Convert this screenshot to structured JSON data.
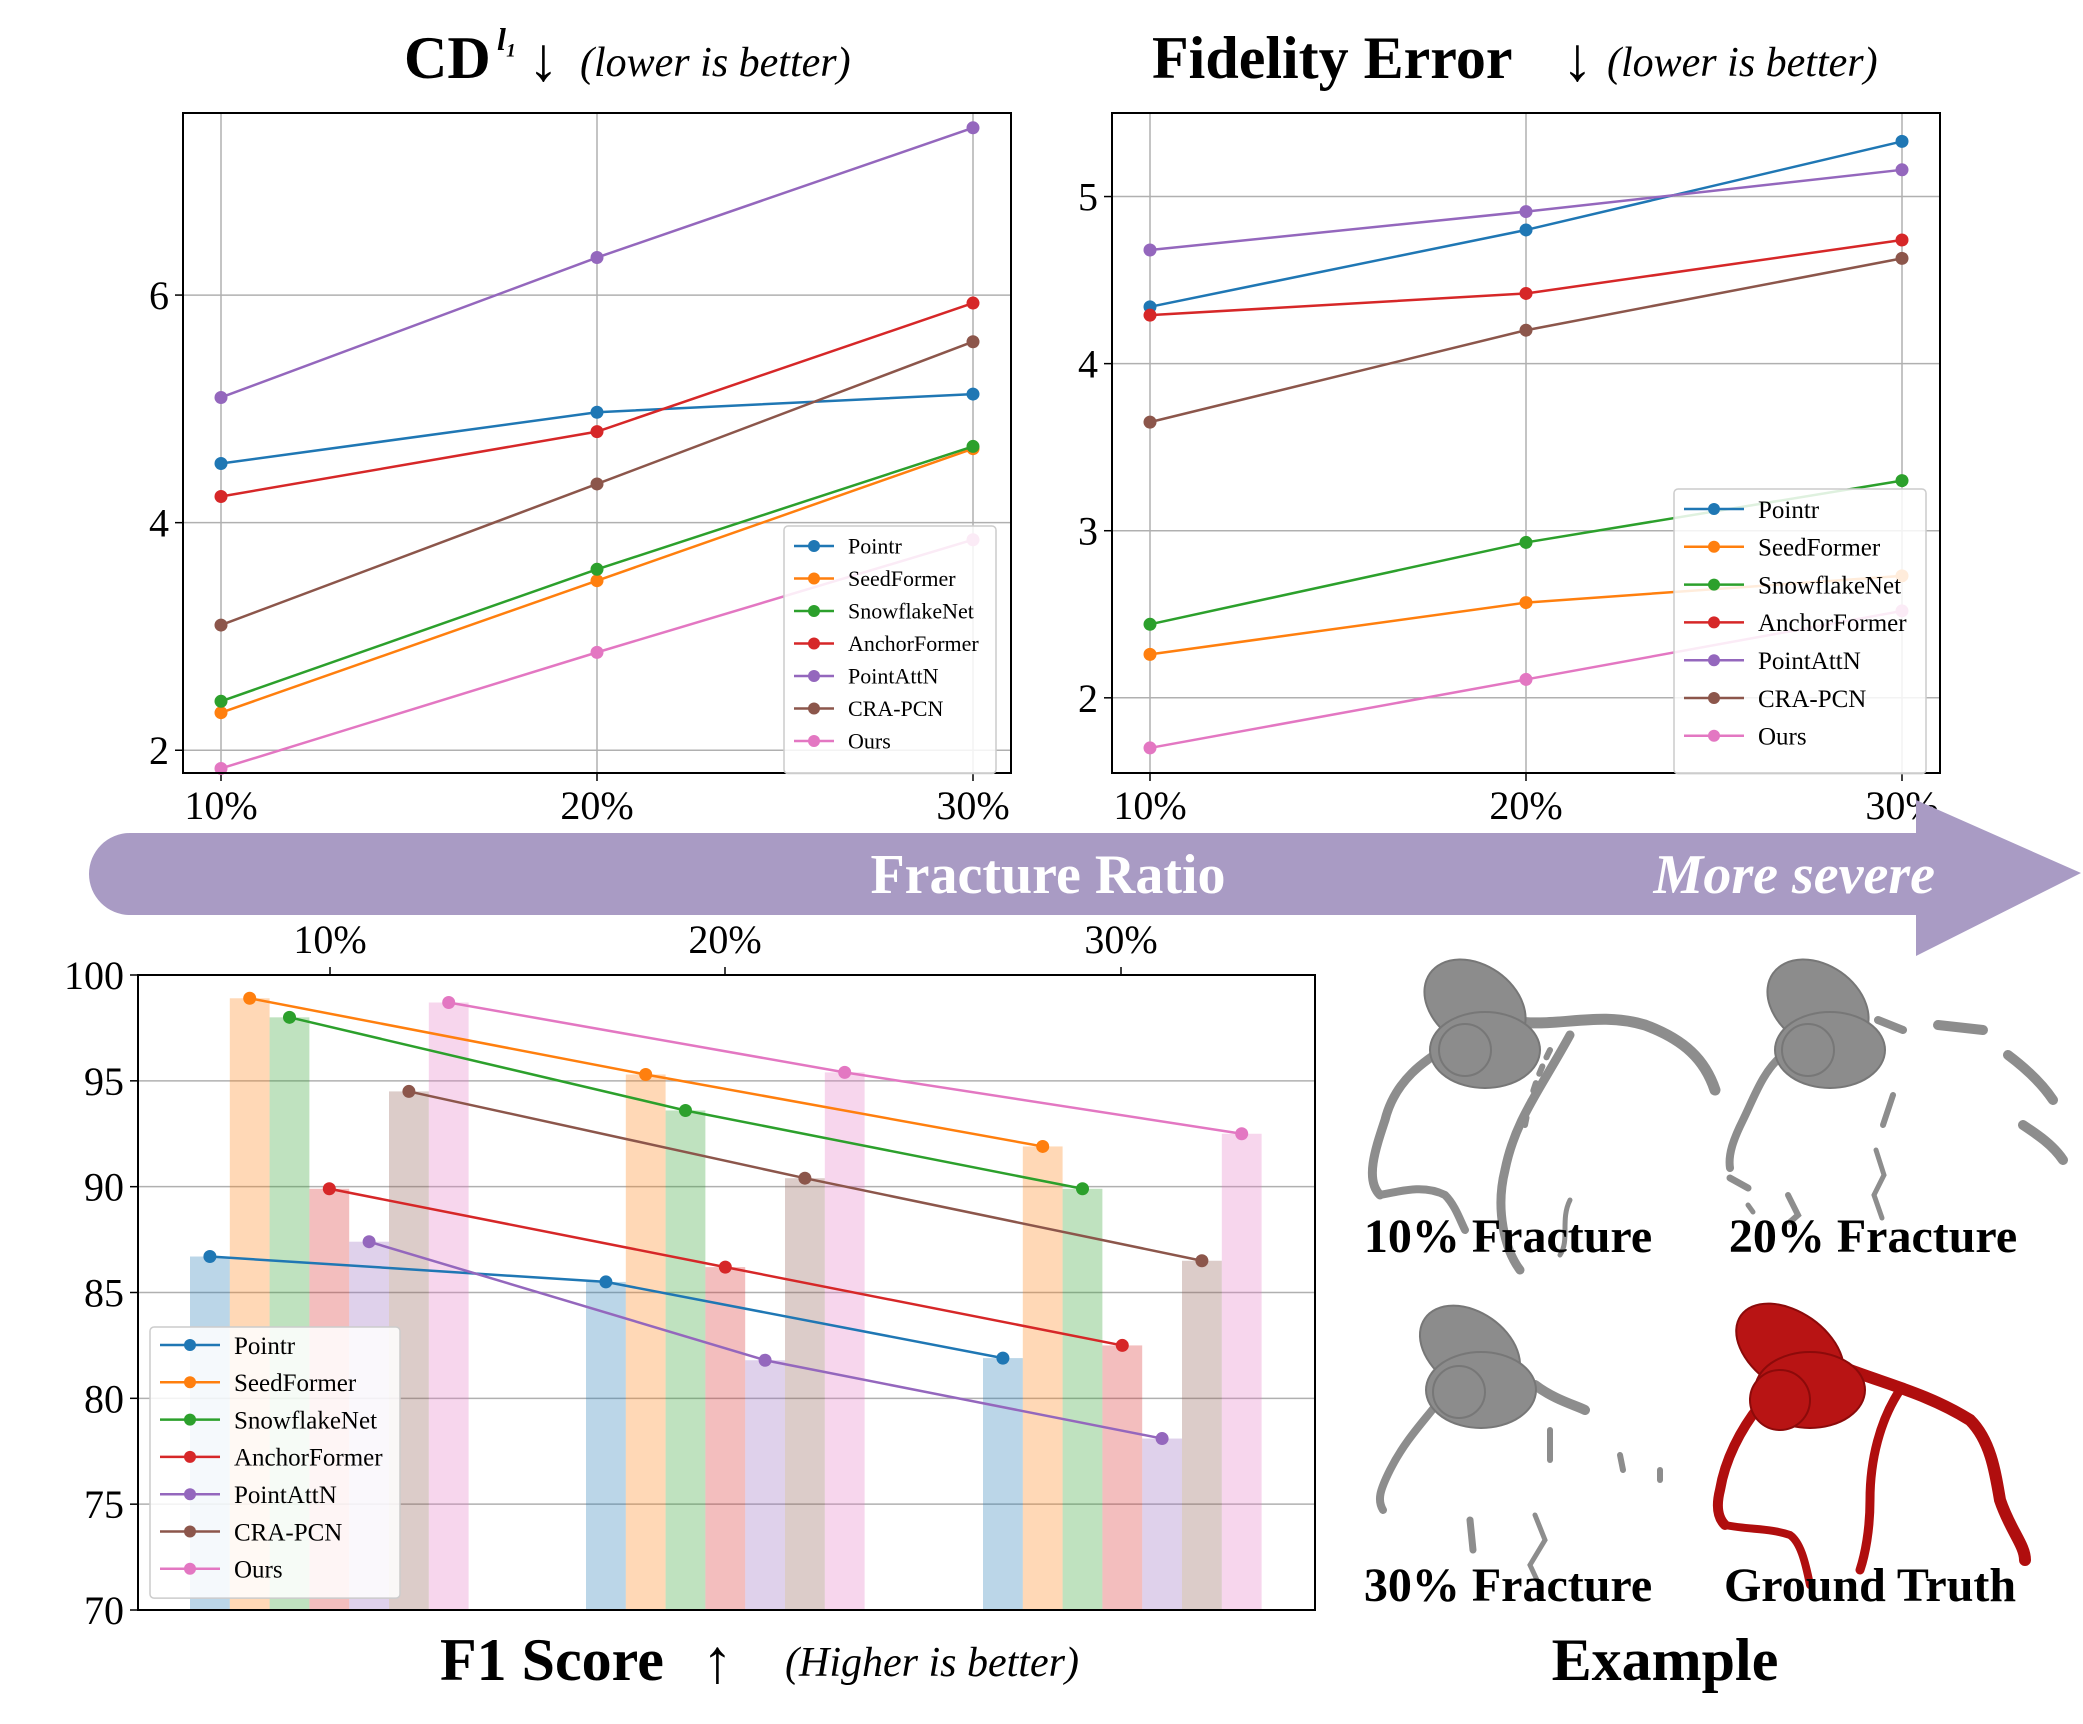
{
  "series_names": [
    "Pointr",
    "SeedFormer",
    "SnowflakeNet",
    "AnchorFormer",
    "PointAttN",
    "CRA-PCN",
    "Ours"
  ],
  "series_colors": [
    "#1f77b4",
    "#ff7f0e",
    "#2ca02c",
    "#d62728",
    "#9467bd",
    "#8c564b",
    "#e377c2"
  ],
  "arrow": {
    "label": "Fracture Ratio",
    "note": "More severe",
    "color": "#a99bc4"
  },
  "example": {
    "title": "Example",
    "captions": [
      "10% Fracture",
      "20% Fracture",
      "30% Fracture",
      "Ground Truth"
    ]
  },
  "chart_data": [
    {
      "type": "line",
      "title": "CD",
      "title_superscript": "l₁",
      "title_arrow": "↓",
      "subtitle": "(lower is better)",
      "categories": [
        "10%",
        "20%",
        "30%"
      ],
      "ylim": [
        1.8,
        7.6
      ],
      "yticks": [
        "2",
        "4",
        "6"
      ],
      "grid": true,
      "legend": "lower-right",
      "series": [
        {
          "name": "Pointr",
          "values": [
            4.52,
            4.97,
            5.13
          ]
        },
        {
          "name": "SeedFormer",
          "values": [
            2.33,
            3.49,
            4.65
          ]
        },
        {
          "name": "SnowflakeNet",
          "values": [
            2.43,
            3.59,
            4.67
          ]
        },
        {
          "name": "AnchorFormer",
          "values": [
            4.23,
            4.8,
            5.93
          ]
        },
        {
          "name": "PointAttN",
          "values": [
            5.1,
            6.33,
            7.47
          ]
        },
        {
          "name": "CRA-PCN",
          "values": [
            3.1,
            4.34,
            5.59
          ]
        },
        {
          "name": "Ours",
          "values": [
            1.84,
            2.86,
            3.85
          ]
        }
      ]
    },
    {
      "type": "line",
      "title": "Fidelity Error",
      "title_arrow": "↓",
      "subtitle": "(lower is better)",
      "categories": [
        "10%",
        "20%",
        "30%"
      ],
      "ylim": [
        1.55,
        5.5
      ],
      "yticks": [
        "2",
        "3",
        "4",
        "5"
      ],
      "grid": true,
      "legend": "lower-right",
      "series": [
        {
          "name": "Pointr",
          "values": [
            4.34,
            4.8,
            5.33
          ]
        },
        {
          "name": "SeedFormer",
          "values": [
            2.26,
            2.57,
            2.73
          ]
        },
        {
          "name": "SnowflakeNet",
          "values": [
            2.44,
            2.93,
            3.3
          ]
        },
        {
          "name": "AnchorFormer",
          "values": [
            4.29,
            4.42,
            4.74
          ]
        },
        {
          "name": "PointAttN",
          "values": [
            4.68,
            4.91,
            5.16
          ]
        },
        {
          "name": "CRA-PCN",
          "values": [
            3.65,
            4.2,
            4.63
          ]
        },
        {
          "name": "Ours",
          "values": [
            1.7,
            2.11,
            2.52
          ]
        }
      ]
    },
    {
      "type": "bar",
      "title": "F1 Score",
      "title_arrow": "↑",
      "subtitle": "(Higher is better)",
      "categories": [
        "10%",
        "20%",
        "30%"
      ],
      "ylim": [
        70,
        100
      ],
      "yticks": [
        "70",
        "75",
        "80",
        "85",
        "90",
        "95",
        "100"
      ],
      "grid": true,
      "legend": "lower-left",
      "overlay": "line",
      "series": [
        {
          "name": "Pointr",
          "values": [
            86.7,
            85.5,
            81.9
          ]
        },
        {
          "name": "SeedFormer",
          "values": [
            98.9,
            95.3,
            91.9
          ]
        },
        {
          "name": "SnowflakeNet",
          "values": [
            98.0,
            93.6,
            89.9
          ]
        },
        {
          "name": "AnchorFormer",
          "values": [
            89.9,
            86.2,
            82.5
          ]
        },
        {
          "name": "PointAttN",
          "values": [
            87.4,
            81.8,
            78.1
          ]
        },
        {
          "name": "CRA-PCN",
          "values": [
            94.5,
            90.4,
            86.5
          ]
        },
        {
          "name": "Ours",
          "values": [
            98.7,
            95.4,
            92.5
          ]
        }
      ]
    }
  ]
}
